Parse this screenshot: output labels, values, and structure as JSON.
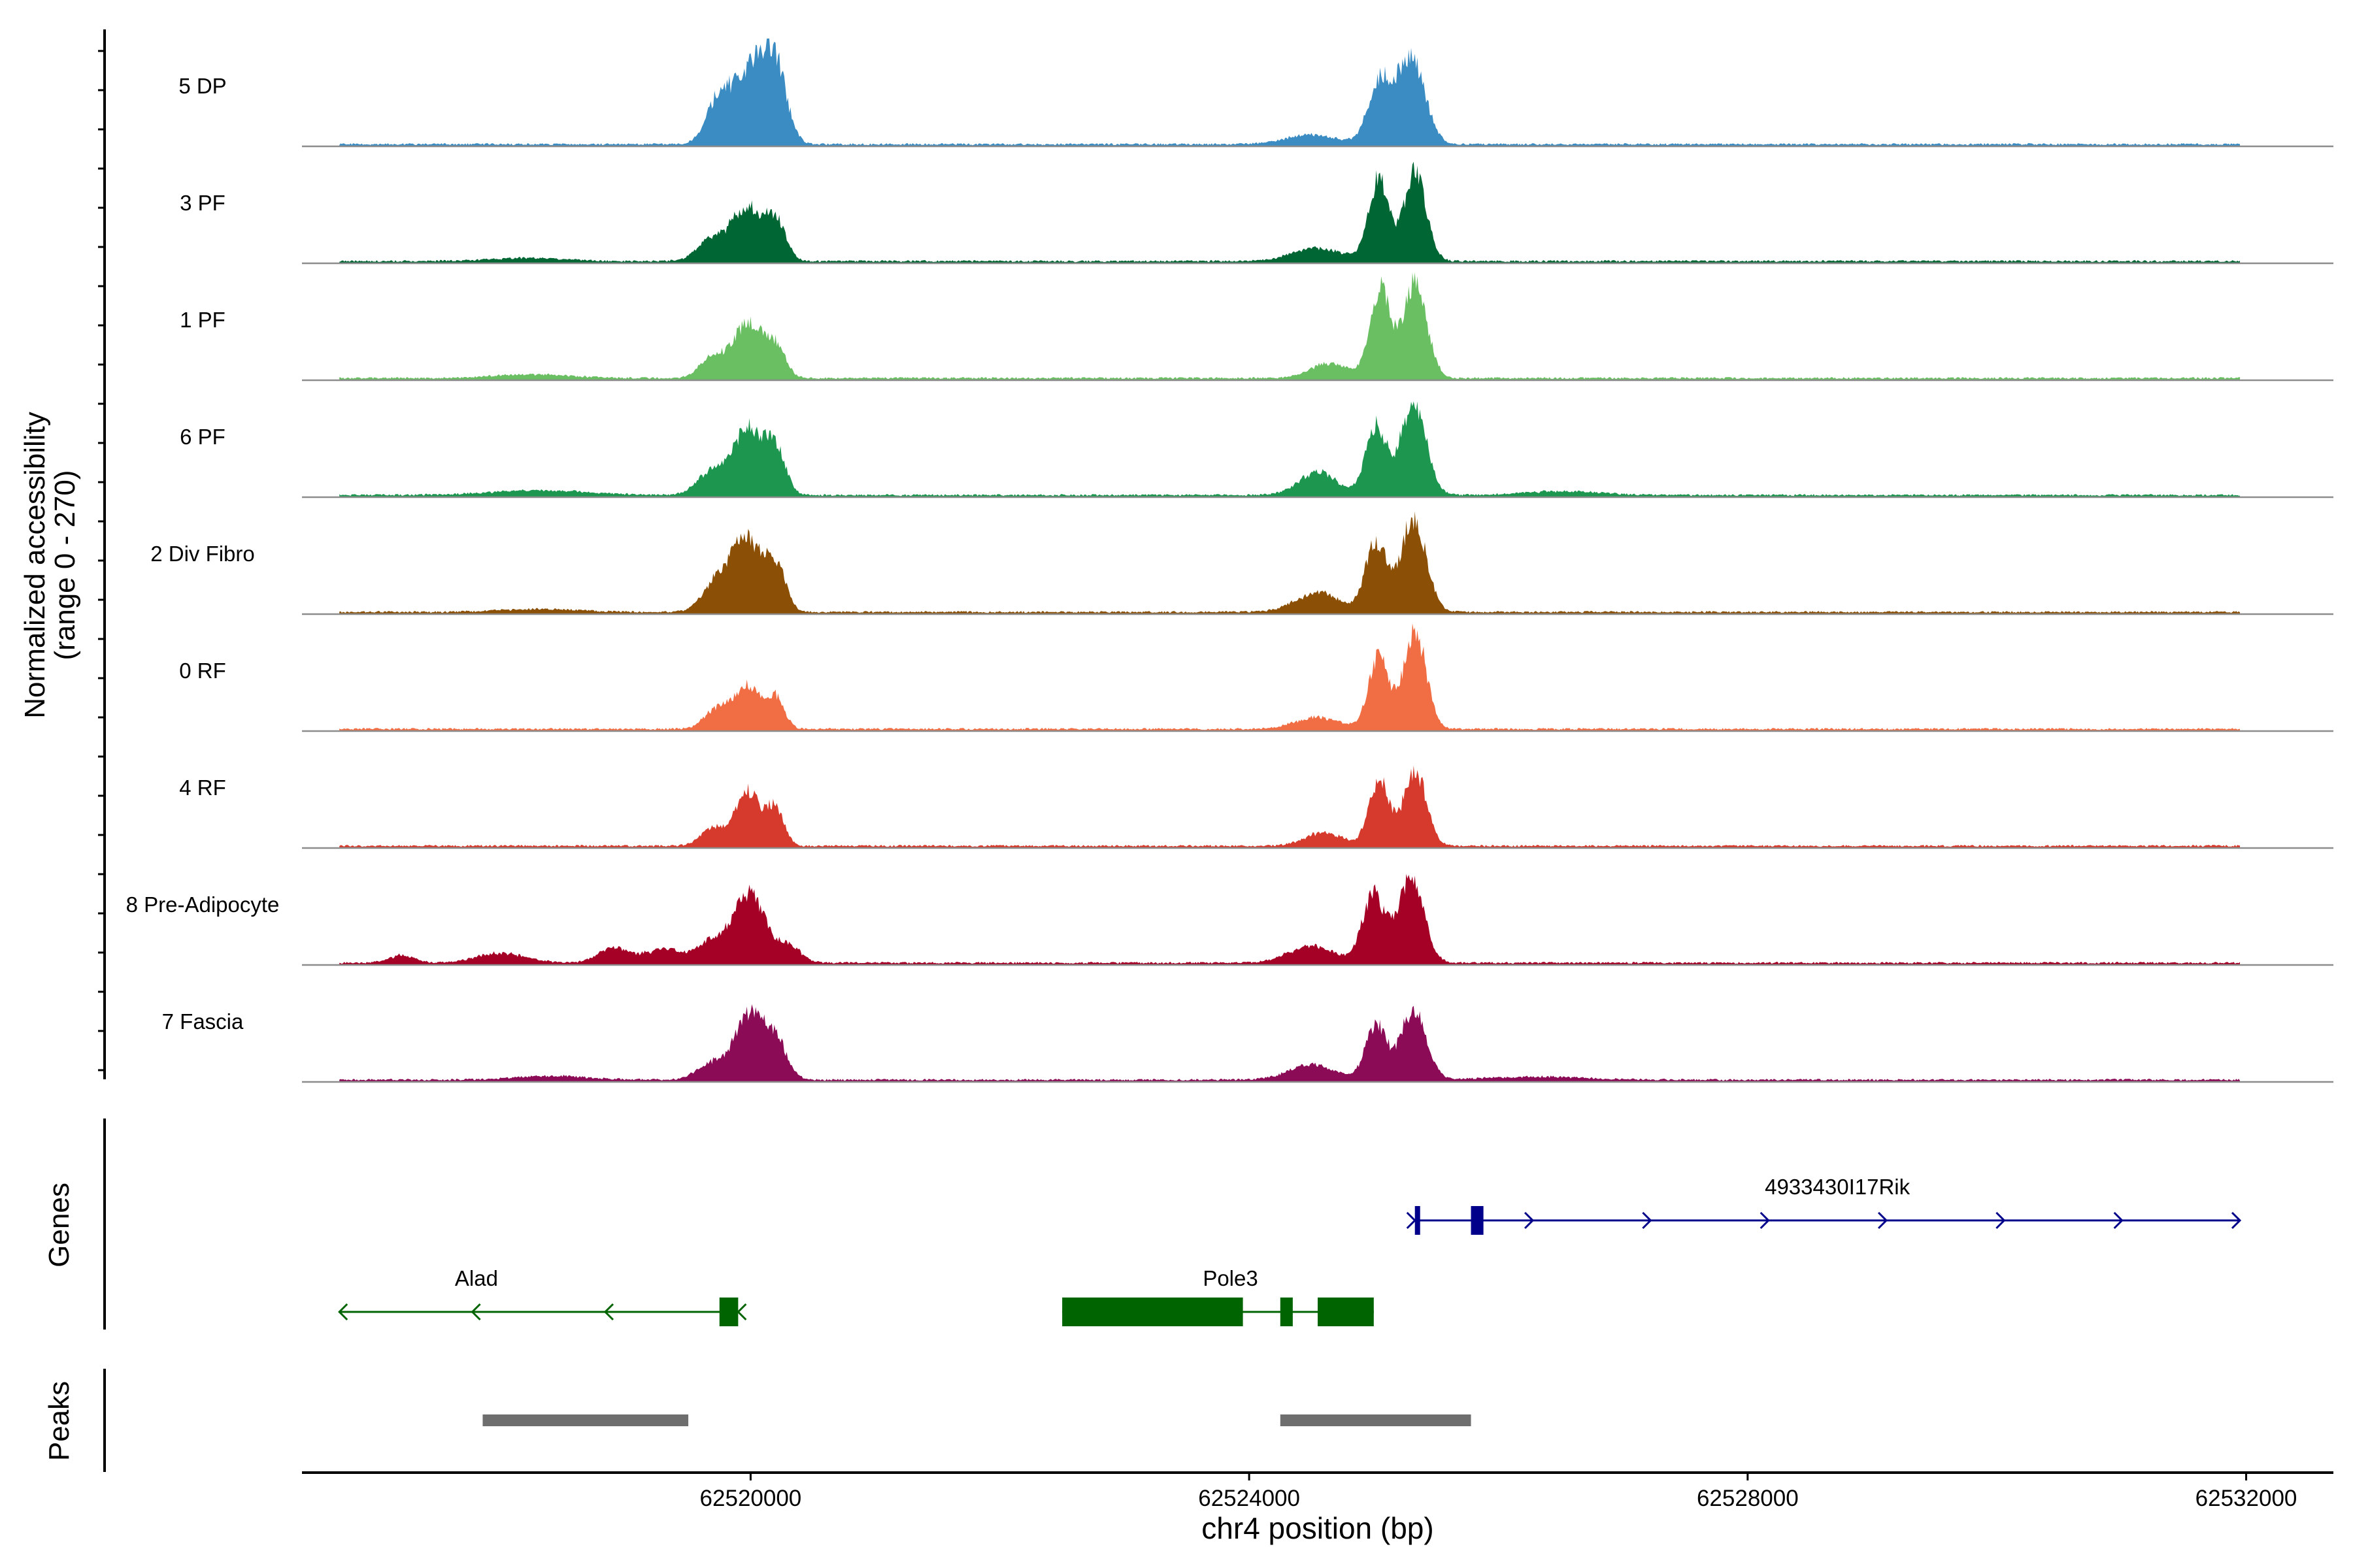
{
  "chart_data": {
    "type": "area",
    "title": "",
    "ylabel_line1": "Normalized accessibility",
    "ylabel_line2": "(range 0 - 270)",
    "xlabel": "chr4 position (bp)",
    "xlim": [
      62516400,
      62532700
    ],
    "ylim": [
      0,
      270
    ],
    "x_ticks": [
      {
        "value": 62520000,
        "label": "62520000"
      },
      {
        "value": 62524000,
        "label": "62524000"
      },
      {
        "value": 62528000,
        "label": "62528000"
      },
      {
        "value": 62532000,
        "label": "62532000"
      }
    ],
    "signal_start": 62516700,
    "signal_end": 62531950,
    "series": [
      {
        "name": "5 DP",
        "color": "#3A8CC3",
        "peaks": [
          [
            62519750,
            120,
            100
          ],
          [
            62520020,
            200,
            130
          ],
          [
            62520200,
            170,
            90
          ],
          [
            62525050,
            160,
            95
          ],
          [
            62525300,
            220,
            110
          ],
          [
            62524500,
            25,
            200
          ]
        ]
      },
      {
        "name": "3 PF",
        "color": "#006634",
        "peaks": [
          [
            62519700,
            60,
            120
          ],
          [
            62519970,
            140,
            110
          ],
          [
            62520200,
            110,
            80
          ],
          [
            62525040,
            210,
            80
          ],
          [
            62525330,
            230,
            90
          ],
          [
            62524550,
            35,
            200
          ],
          [
            62518200,
            8,
            300
          ]
        ]
      },
      {
        "name": "1 PF",
        "color": "#6ABF63",
        "peaks": [
          [
            62519700,
            60,
            100
          ],
          [
            62519980,
            145,
            110
          ],
          [
            62520200,
            80,
            80
          ],
          [
            62525050,
            230,
            80
          ],
          [
            62525330,
            250,
            95
          ],
          [
            62524650,
            40,
            150
          ],
          [
            62518250,
            10,
            300
          ]
        ]
      },
      {
        "name": "6 PF",
        "color": "#1D9650",
        "peaks": [
          [
            62519700,
            65,
            120
          ],
          [
            62519980,
            170,
            110
          ],
          [
            62520200,
            120,
            80
          ],
          [
            62525020,
            180,
            85
          ],
          [
            62525320,
            240,
            100
          ],
          [
            62524550,
            60,
            150
          ],
          [
            62518300,
            12,
            400
          ],
          [
            62526500,
            10,
            300
          ]
        ]
      },
      {
        "name": "2 Div Fibro",
        "color": "#8B5005",
        "peaks": [
          [
            62519750,
            90,
            120
          ],
          [
            62519980,
            180,
            110
          ],
          [
            62520200,
            120,
            80
          ],
          [
            62525020,
            180,
            85
          ],
          [
            62525320,
            245,
            100
          ],
          [
            62524550,
            50,
            180
          ],
          [
            62518300,
            8,
            300
          ]
        ]
      },
      {
        "name": "0 RF",
        "color": "#F16E45",
        "peaks": [
          [
            62519750,
            55,
            110
          ],
          [
            62519980,
            105,
            100
          ],
          [
            62520200,
            80,
            70
          ],
          [
            62525040,
            190,
            80
          ],
          [
            62525330,
            255,
            90
          ],
          [
            62524550,
            30,
            180
          ]
        ]
      },
      {
        "name": "4 RF",
        "color": "#D63A2C",
        "peaks": [
          [
            62519700,
            45,
            100
          ],
          [
            62519980,
            140,
            100
          ],
          [
            62520200,
            95,
            70
          ],
          [
            62525040,
            170,
            80
          ],
          [
            62525330,
            200,
            90
          ],
          [
            62524600,
            35,
            150
          ]
        ]
      },
      {
        "name": "8 Pre-Adipocyte",
        "color": "#A50026",
        "peaks": [
          [
            62518900,
            40,
            120
          ],
          [
            62519300,
            35,
            150
          ],
          [
            62519700,
            60,
            120
          ],
          [
            62519990,
            180,
            120
          ],
          [
            62520300,
            45,
            100
          ],
          [
            62525000,
            180,
            90
          ],
          [
            62525300,
            230,
            100
          ],
          [
            62524500,
            45,
            180
          ],
          [
            62518000,
            25,
            200
          ],
          [
            62517200,
            20,
            100
          ]
        ]
      },
      {
        "name": "7 Fascia",
        "color": "#8C0B56",
        "peaks": [
          [
            62519700,
            45,
            120
          ],
          [
            62519990,
            170,
            110
          ],
          [
            62520200,
            100,
            90
          ],
          [
            62525020,
            140,
            85
          ],
          [
            62525320,
            185,
            100
          ],
          [
            62524500,
            40,
            180
          ],
          [
            62518400,
            10,
            300
          ],
          [
            62526300,
            8,
            400
          ]
        ]
      }
    ],
    "genes_track_label": "Genes",
    "peaks_track_label": "Peaks",
    "genes": [
      {
        "name": "4933430I17Rik",
        "strand": "+",
        "color": "#00008B",
        "start": 62525330,
        "end": 62531950,
        "exons": [
          [
            62525330,
            62525370
          ],
          [
            62525780,
            62525880
          ]
        ],
        "row": 0,
        "label_x": 62528720
      },
      {
        "name": "Alad",
        "strand": "-",
        "color": "#006400",
        "start": 62516700,
        "end": 62519900,
        "exons": [
          [
            62519750,
            62519900
          ]
        ],
        "row": 1,
        "label_x": 62517800
      },
      {
        "name": "Pole3",
        "strand": "",
        "color": "#006400",
        "start": 62522500,
        "end": 62525000,
        "exons": [
          [
            62522500,
            62523950
          ],
          [
            62524250,
            62524350
          ],
          [
            62524550,
            62525000
          ]
        ],
        "row": 1,
        "label_x": 62523850
      }
    ],
    "peaks": [
      {
        "start": 62517850,
        "end": 62519500
      },
      {
        "start": 62524250,
        "end": 62525780
      }
    ]
  }
}
